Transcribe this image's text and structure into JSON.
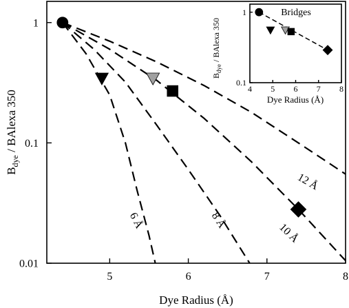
{
  "chart_data": [
    {
      "type": "line",
      "xlabel": "Dye Radius (Å)",
      "ylabel_main": "B",
      "ylabel_sub": "dye",
      "ylabel_rest": " / BAlexa 350",
      "x_scale": "linear",
      "y_scale": "log",
      "xlim": [
        4.2,
        8.0
      ],
      "ylim": [
        0.01,
        1.5
      ],
      "x_ticks": [
        {
          "value": 5,
          "label": "5"
        },
        {
          "value": 6,
          "label": "6"
        },
        {
          "value": 7,
          "label": "7"
        },
        {
          "value": 8,
          "label": "8"
        }
      ],
      "y_ticks": [
        {
          "value": 1,
          "label": "1"
        },
        {
          "value": 0.1,
          "label": "0.1"
        },
        {
          "value": 0.01,
          "label": "0.01"
        }
      ],
      "series": [
        {
          "name": "6 Å",
          "points": [
            [
              4.4,
              1.0
            ],
            [
              4.7,
              0.55
            ],
            [
              5.0,
              0.25
            ],
            [
              5.2,
              0.1
            ],
            [
              5.35,
              0.04
            ],
            [
              5.5,
              0.017
            ],
            [
              5.58,
              0.01
            ]
          ]
        },
        {
          "name": "8 Å",
          "points": [
            [
              4.4,
              1.0
            ],
            [
              4.8,
              0.6
            ],
            [
              5.2,
              0.32
            ],
            [
              5.6,
              0.14
            ],
            [
              6.0,
              0.06
            ],
            [
              6.4,
              0.025
            ],
            [
              6.78,
              0.01
            ]
          ]
        },
        {
          "name": "10 Å",
          "points": [
            [
              4.4,
              1.0
            ],
            [
              5.0,
              0.6
            ],
            [
              5.6,
              0.33
            ],
            [
              6.2,
              0.16
            ],
            [
              6.8,
              0.07
            ],
            [
              7.4,
              0.028
            ],
            [
              8.0,
              0.0105
            ]
          ]
        },
        {
          "name": "12 Å",
          "points": [
            [
              4.4,
              1.0
            ],
            [
              5.0,
              0.7
            ],
            [
              5.6,
              0.47
            ],
            [
              6.2,
              0.3
            ],
            [
              6.8,
              0.18
            ],
            [
              7.4,
              0.1
            ],
            [
              8.0,
              0.055
            ]
          ]
        }
      ],
      "curve_labels": [
        {
          "text": "6 Å",
          "x": 5.3,
          "y": 0.022,
          "angle": 63
        },
        {
          "text": "8 Å",
          "x": 6.35,
          "y": 0.022,
          "angle": 57
        },
        {
          "text": "10 Å",
          "x": 7.25,
          "y": 0.017,
          "angle": 44
        },
        {
          "text": "12 Å",
          "x": 7.5,
          "y": 0.045,
          "angle": 30
        }
      ],
      "markers": [
        {
          "shape": "circle",
          "color": "#000000",
          "x": 4.4,
          "y": 1.0
        },
        {
          "shape": "triangle-down",
          "color": "#000000",
          "x": 4.9,
          "y": 0.34
        },
        {
          "shape": "triangle-down",
          "color": "#a0a0a0",
          "x": 5.55,
          "y": 0.34
        },
        {
          "shape": "square",
          "color": "#000000",
          "x": 5.8,
          "y": 0.27
        },
        {
          "shape": "diamond",
          "color": "#000000",
          "x": 7.4,
          "y": 0.028
        }
      ]
    },
    {
      "type": "scatter",
      "title": "Bridges",
      "xlabel": "Dye Radius (Å)",
      "ylabel_main": "B",
      "ylabel_sub": "dye",
      "ylabel_rest": " / BAlexa 350",
      "x_scale": "linear",
      "y_scale": "log",
      "xlim": [
        4.0,
        8.0
      ],
      "ylim": [
        0.1,
        1.3
      ],
      "x_ticks": [
        {
          "value": 4,
          "label": "4"
        },
        {
          "value": 5,
          "label": "5"
        },
        {
          "value": 6,
          "label": "6"
        },
        {
          "value": 7,
          "label": "7"
        },
        {
          "value": 8,
          "label": "8"
        }
      ],
      "y_ticks": [
        {
          "value": 1,
          "label": "1"
        },
        {
          "value": 0.1,
          "label": "0.1"
        }
      ],
      "fit_line": [
        [
          4.4,
          1.0
        ],
        [
          7.4,
          0.29
        ]
      ],
      "markers": [
        {
          "shape": "circle",
          "color": "#000000",
          "x": 4.4,
          "y": 1.0
        },
        {
          "shape": "triangle-down",
          "color": "#000000",
          "x": 4.9,
          "y": 0.55
        },
        {
          "shape": "triangle-down",
          "color": "#a0a0a0",
          "x": 5.55,
          "y": 0.55
        },
        {
          "shape": "square",
          "color": "#000000",
          "x": 5.8,
          "y": 0.53
        },
        {
          "shape": "diamond",
          "color": "#000000",
          "x": 7.4,
          "y": 0.29
        }
      ]
    }
  ]
}
